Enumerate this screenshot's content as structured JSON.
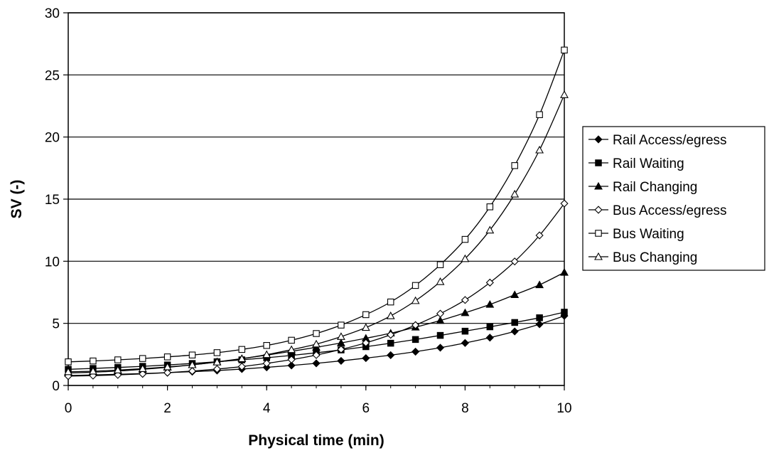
{
  "chart_data": {
    "type": "line",
    "title": "",
    "xlabel": "Physical time (min)",
    "ylabel": "SV (-)",
    "xlim": [
      0,
      10
    ],
    "ylim": [
      0,
      30
    ],
    "xticks": [
      0,
      2,
      4,
      6,
      8,
      10
    ],
    "yticks": [
      0,
      5,
      10,
      15,
      20,
      25,
      30
    ],
    "grid": "horizontal",
    "legend_position": "right",
    "x": [
      0,
      0.5,
      1,
      1.5,
      2,
      2.5,
      3,
      3.5,
      4,
      4.5,
      5,
      5.5,
      6,
      6.5,
      7,
      7.5,
      8,
      8.5,
      9,
      9.5,
      10
    ],
    "series": [
      {
        "name": "Rail Access/egress",
        "marker": "diamond-filled",
        "values": [
          0.8,
          0.85,
          0.9,
          0.96,
          1.03,
          1.11,
          1.2,
          1.32,
          1.46,
          1.61,
          1.78,
          1.98,
          2.2,
          2.44,
          2.72,
          3.04,
          3.42,
          3.85,
          4.35,
          4.93,
          5.6
        ]
      },
      {
        "name": "Rail Waiting",
        "marker": "square-filled",
        "values": [
          1.3,
          1.37,
          1.45,
          1.54,
          1.65,
          1.77,
          1.91,
          2.06,
          2.23,
          2.42,
          2.63,
          2.86,
          3.12,
          3.4,
          3.7,
          4.03,
          4.37,
          4.72,
          5.07,
          5.45,
          5.9
        ]
      },
      {
        "name": "Rail Changing",
        "marker": "triangle-filled",
        "values": [
          1.0,
          1.07,
          1.16,
          1.3,
          1.46,
          1.66,
          1.9,
          2.16,
          2.44,
          2.75,
          3.07,
          3.42,
          3.8,
          4.21,
          4.69,
          5.23,
          5.85,
          6.52,
          7.3,
          8.1,
          9.1
        ]
      },
      {
        "name": "Bus Access/egress",
        "marker": "diamond-open",
        "values": [
          0.75,
          0.79,
          0.85,
          0.93,
          1.03,
          1.16,
          1.32,
          1.52,
          1.78,
          2.08,
          2.45,
          2.9,
          3.43,
          4.08,
          4.86,
          5.78,
          6.88,
          8.28,
          9.98,
          12.08,
          14.65
        ]
      },
      {
        "name": "Bus Waiting",
        "marker": "square-open",
        "values": [
          1.9,
          1.97,
          2.06,
          2.17,
          2.3,
          2.45,
          2.64,
          2.9,
          3.22,
          3.64,
          4.18,
          4.86,
          5.7,
          6.72,
          8.05,
          9.72,
          11.76,
          14.38,
          17.7,
          21.8,
          27.0
        ]
      },
      {
        "name": "Bus Changing",
        "marker": "triangle-open",
        "values": [
          1.1,
          1.15,
          1.24,
          1.35,
          1.49,
          1.66,
          1.88,
          2.15,
          2.48,
          2.88,
          3.33,
          3.93,
          4.66,
          5.6,
          6.82,
          8.35,
          10.2,
          12.5,
          15.4,
          18.95,
          23.4
        ]
      }
    ]
  }
}
